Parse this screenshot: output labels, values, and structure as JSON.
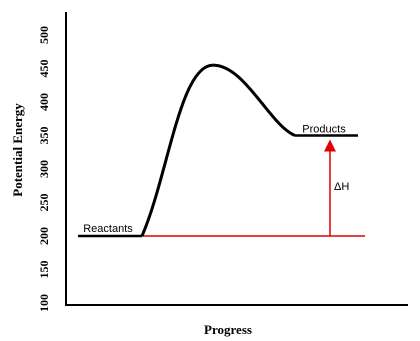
{
  "chart_data": {
    "type": "energy-diagram",
    "y_label": "Potential Energy",
    "x_label": "Progress",
    "ylim": [
      100,
      500
    ],
    "yticks": [
      100,
      150,
      200,
      250,
      300,
      350,
      400,
      450,
      500
    ],
    "levels": [
      {
        "label": "Reactants",
        "value": 200
      },
      {
        "label": "Products",
        "value": 350
      }
    ],
    "peak": 455,
    "delta_label": "ΔH",
    "curve_color": "#000000",
    "delta_color": "#e00000"
  }
}
